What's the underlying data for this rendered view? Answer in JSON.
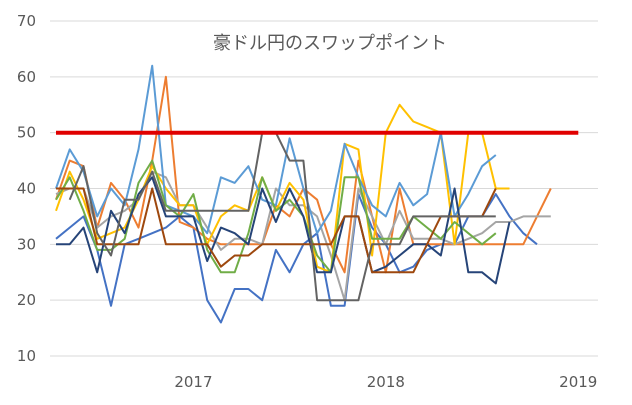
{
  "chart_data": {
    "type": "line",
    "title": "豪ドル円のスワップポイント",
    "xlabel": "",
    "ylabel": "",
    "ylim": [
      10,
      70
    ],
    "yticks": [
      10,
      20,
      30,
      40,
      50,
      60,
      70
    ],
    "xlim": [
      0,
      39
    ],
    "xticks": [
      {
        "value": 10,
        "label": "2017"
      },
      {
        "value": 24,
        "label": "2018"
      },
      {
        "value": 38,
        "label": "2019"
      }
    ],
    "grid": true,
    "legend": "none",
    "x": [
      0,
      1,
      2,
      3,
      4,
      5,
      6,
      7,
      8,
      9,
      10,
      11,
      12,
      13,
      14,
      15,
      16,
      17,
      18,
      19,
      20,
      21,
      22,
      23,
      24,
      25,
      26,
      27,
      28,
      29,
      30,
      31,
      32,
      33,
      34,
      35,
      36,
      37,
      38
    ],
    "series": [
      {
        "color": "#4472C4",
        "values": [
          31,
          33,
          35,
          29,
          19,
          30,
          31,
          32,
          33,
          35,
          33,
          20,
          16,
          22,
          22,
          20,
          29,
          25,
          30,
          32,
          19,
          19,
          39,
          33,
          30,
          25,
          26,
          29,
          30,
          30,
          35,
          35,
          39,
          35,
          32,
          30,
          null,
          null,
          null
        ]
      },
      {
        "color": "#ED7D31",
        "values": [
          38,
          45,
          44,
          33,
          41,
          38,
          33,
          45,
          60,
          34,
          33,
          31,
          30,
          30,
          30,
          30,
          37,
          35,
          40,
          38,
          30,
          25,
          45,
          35,
          25,
          40,
          30,
          30,
          30,
          30,
          30,
          30,
          30,
          30,
          30,
          35,
          40,
          null,
          null
        ]
      },
      {
        "color": "#A5A5A5",
        "values": [
          39,
          40,
          40,
          33,
          35,
          36,
          38,
          43,
          42,
          37,
          37,
          33,
          29,
          31,
          31,
          30,
          40,
          37,
          37,
          35,
          28,
          20,
          40,
          35,
          30,
          36,
          31,
          31,
          31,
          30,
          31,
          32,
          34,
          34,
          35,
          35,
          35,
          null,
          null
        ]
      },
      {
        "color": "#FFC000",
        "values": [
          36,
          43,
          38,
          31,
          32,
          33,
          38,
          44,
          40,
          37,
          37,
          30,
          35,
          37,
          36,
          42,
          36,
          41,
          38,
          26,
          25,
          48,
          47,
          28,
          50,
          55,
          52,
          51,
          50,
          30,
          50,
          50,
          40,
          40,
          null,
          null,
          null,
          null,
          null
        ]
      },
      {
        "color": "#5B9BD5",
        "values": [
          40,
          47,
          43,
          35,
          40,
          37,
          47,
          62,
          37,
          36,
          35,
          32,
          42,
          41,
          44,
          38,
          37,
          49,
          40,
          32,
          36,
          48,
          42,
          37,
          35,
          41,
          37,
          39,
          50,
          35,
          39,
          44,
          46,
          null,
          null,
          null,
          null,
          null,
          null
        ]
      },
      {
        "color": "#70AD47",
        "values": [
          38,
          42,
          36,
          29,
          29,
          31,
          41,
          45,
          37,
          35,
          39,
          29,
          25,
          25,
          32,
          42,
          36,
          38,
          35,
          28,
          25,
          42,
          42,
          31,
          31,
          31,
          35,
          33,
          31,
          34,
          32,
          30,
          32,
          null,
          null,
          null,
          null,
          null,
          null
        ]
      },
      {
        "color": "#264478",
        "values": [
          30,
          30,
          33,
          25,
          36,
          32,
          39,
          42,
          35,
          35,
          35,
          27,
          33,
          32,
          30,
          40,
          34,
          40,
          35,
          25,
          25,
          35,
          35,
          25,
          26,
          28,
          30,
          30,
          28,
          40,
          25,
          25,
          23,
          34,
          null,
          null,
          null,
          null,
          null
        ]
      },
      {
        "color": "#9E480E",
        "values": [
          40,
          40,
          40,
          30,
          30,
          30,
          30,
          40,
          30,
          30,
          30,
          30,
          26,
          28,
          28,
          30,
          30,
          30,
          30,
          30,
          30,
          35,
          35,
          25,
          25,
          25,
          25,
          30,
          35,
          35,
          35,
          35,
          40,
          null,
          null,
          null,
          null,
          null,
          null
        ]
      },
      {
        "color": "#636363",
        "values": [
          null,
          38,
          44,
          32,
          28,
          38,
          38,
          43,
          36,
          36,
          36,
          36,
          36,
          36,
          36,
          50,
          50,
          45,
          45,
          20,
          20,
          20,
          20,
          30,
          30,
          30,
          35,
          35,
          35,
          35,
          35,
          35,
          35,
          null,
          null,
          null,
          null,
          null,
          null
        ]
      },
      {
        "color": "#E00000",
        "values": [
          50,
          50,
          50,
          50,
          50,
          50,
          50,
          50,
          50,
          50,
          50,
          50,
          50,
          50,
          50,
          50,
          50,
          50,
          50,
          50,
          50,
          50,
          50,
          50,
          50,
          50,
          50,
          50,
          50,
          50,
          50,
          50,
          50,
          50,
          50,
          50,
          50,
          50,
          50
        ]
      }
    ]
  }
}
